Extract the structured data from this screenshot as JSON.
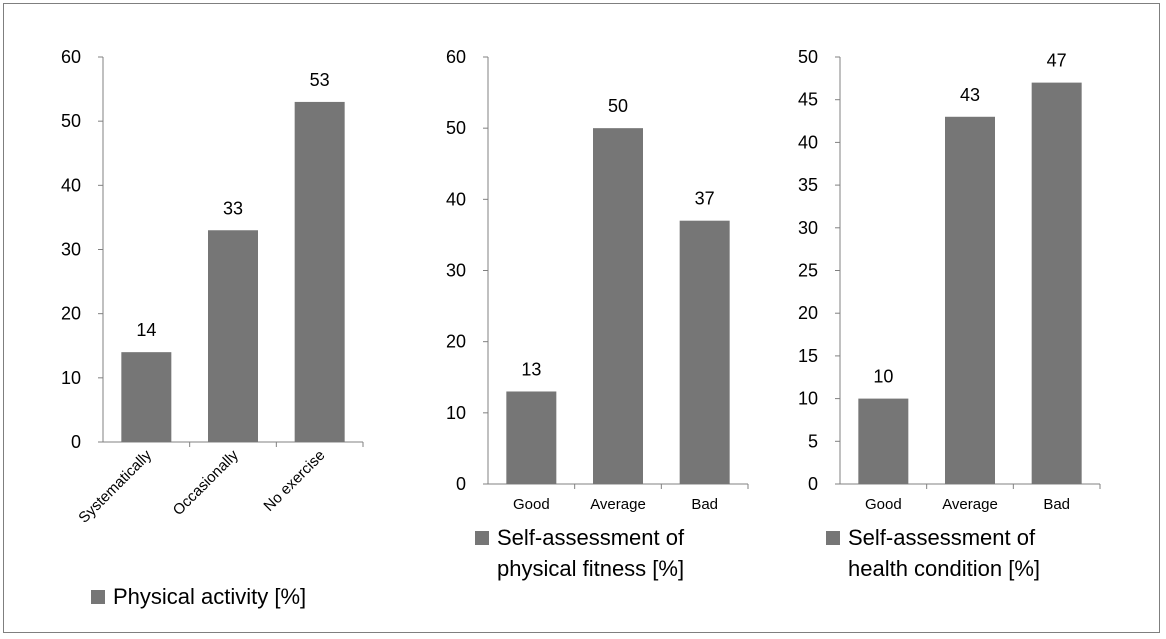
{
  "chart_data": [
    {
      "type": "bar",
      "categories": [
        "Systematically",
        "Occasionally",
        "No exercise"
      ],
      "series": [
        {
          "name": "Physical activity [%]",
          "values": [
            14,
            33,
            53
          ]
        }
      ],
      "ylim": [
        0,
        60
      ],
      "yticks": [
        0,
        10,
        20,
        30,
        40,
        50,
        60
      ],
      "legend": [
        "Physical activity [%]"
      ],
      "rotated_category_labels": true,
      "legend_position": "bottom"
    },
    {
      "type": "bar",
      "categories": [
        "Good",
        "Average",
        "Bad"
      ],
      "series": [
        {
          "name": "Self-assessment of physical fitness  [%]",
          "values": [
            13,
            50,
            37
          ]
        }
      ],
      "ylim": [
        0,
        60
      ],
      "yticks": [
        0,
        10,
        20,
        30,
        40,
        50,
        60
      ],
      "legend": [
        "Self-assessment of",
        "physical fitness  [%]"
      ],
      "rotated_category_labels": false,
      "legend_position": "bottom"
    },
    {
      "type": "bar",
      "categories": [
        "Good",
        "Average",
        "Bad"
      ],
      "series": [
        {
          "name": "Self-assessment of health condition [%]",
          "values": [
            10,
            43,
            47
          ]
        }
      ],
      "ylim": [
        0,
        50
      ],
      "yticks": [
        0,
        5,
        10,
        15,
        20,
        25,
        30,
        35,
        40,
        45,
        50
      ],
      "legend": [
        "Self-assessment of",
        "health condition [%]"
      ],
      "rotated_category_labels": false,
      "legend_position": "bottom"
    }
  ],
  "colors": {
    "bar": "#767676",
    "axis": "#808080"
  }
}
